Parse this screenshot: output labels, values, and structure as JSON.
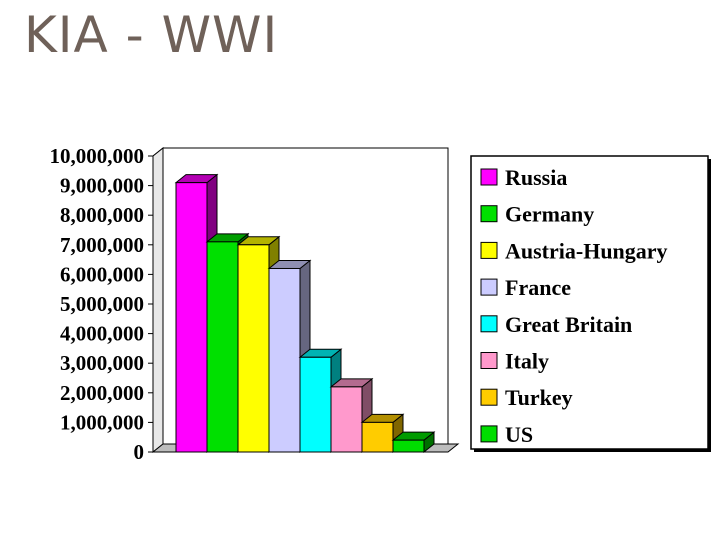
{
  "slide": {
    "title": "KIA - WWI"
  },
  "chart_data": {
    "type": "bar",
    "categories": [
      "Russia",
      "Germany",
      "Austria-Hungary",
      "France",
      "Great Britain",
      "Italy",
      "Turkey",
      "US"
    ],
    "values": [
      9100000,
      7100000,
      7000000,
      6200000,
      3200000,
      2200000,
      1000000,
      400000
    ],
    "colors": [
      "#ff00ff",
      "#00e000",
      "#ffff00",
      "#ccccff",
      "#00ffff",
      "#ff99cc",
      "#ffcc00",
      "#00dd00"
    ],
    "ylim": [
      0,
      10000000
    ],
    "yticks": [
      "10,000,000",
      "9,000,000",
      "8,000,000",
      "7,000,000",
      "6,000,000",
      "5,000,000",
      "4,000,000",
      "3,000,000",
      "2,000,000",
      "1,000,000",
      "0"
    ],
    "grid": true,
    "legend": "right",
    "style": "3d-bars"
  }
}
